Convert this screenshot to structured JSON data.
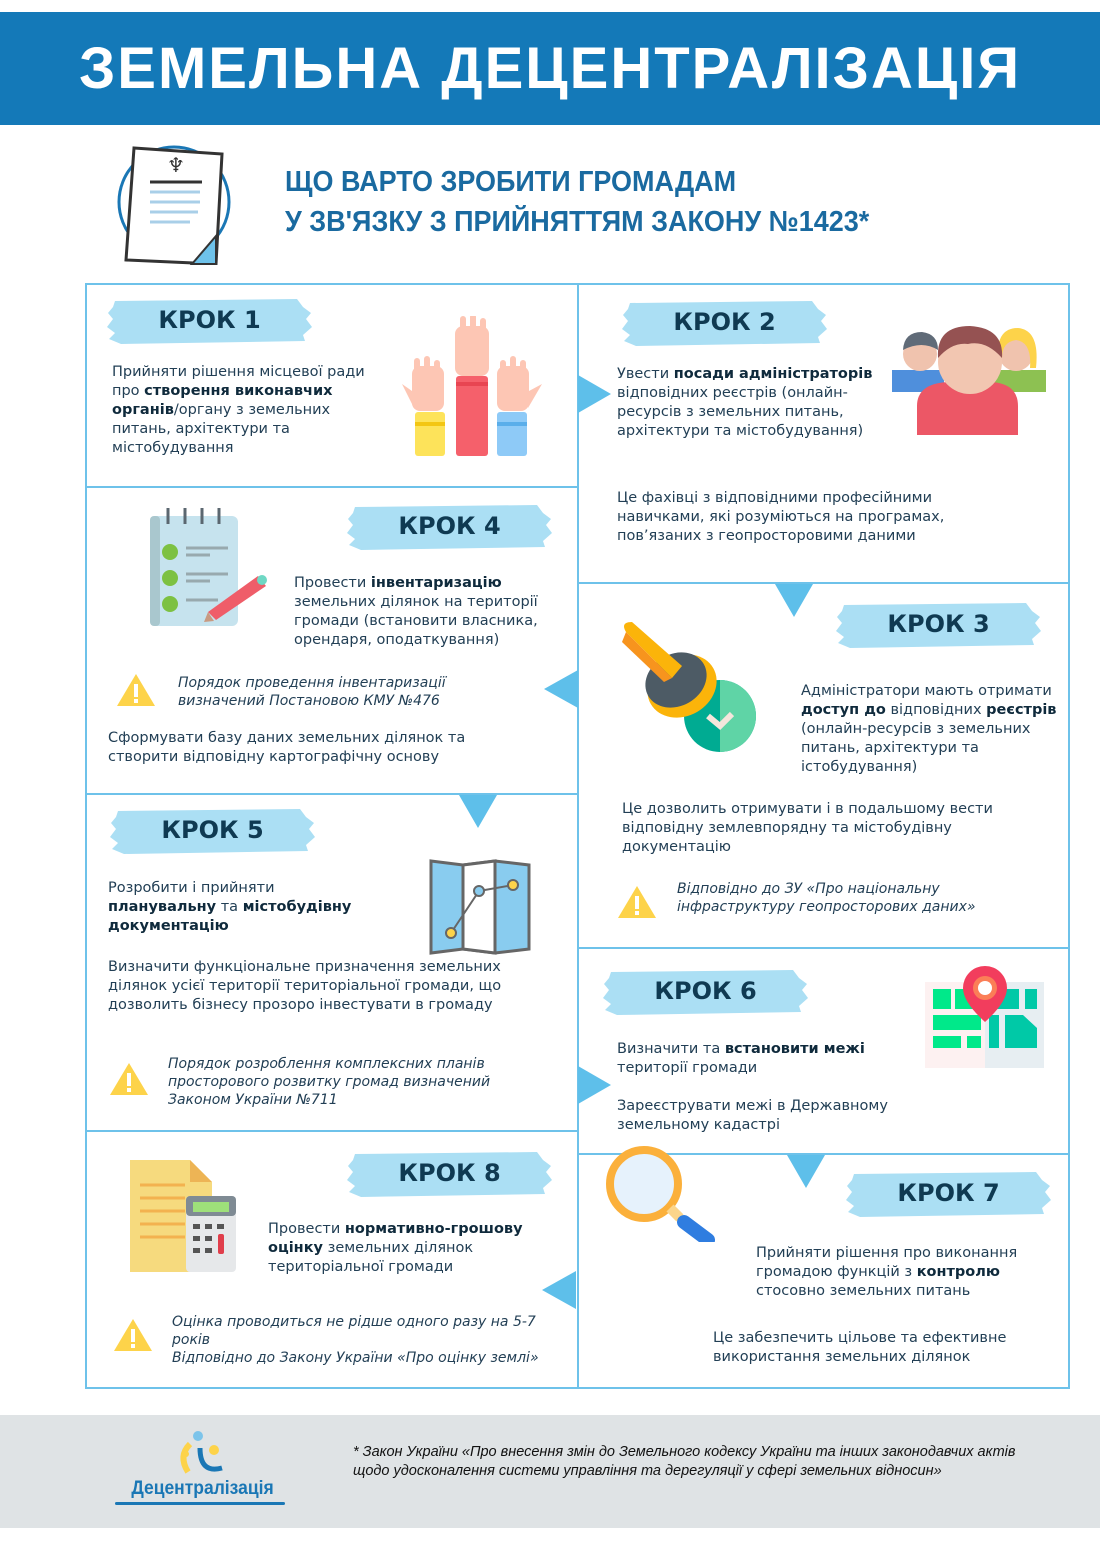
{
  "header": {
    "title": "ЗЕМЕЛЬНА ДЕЦЕНТРАЛІЗАЦІЯ",
    "subtitle_line1": "ЩО ВАРТО ЗРОБИТИ ГРОМАДАМ",
    "subtitle_line2": "У ЗВ'ЯЗКУ З ПРИЙНЯТТЯМ ЗАКОНУ №1423*"
  },
  "colors": {
    "header": "#1479b8",
    "grid": "#6ec2ea",
    "badge": "#abdff4",
    "arrow": "#5ebfea",
    "warning": "#fdd34a",
    "footer": "#dfe3e5"
  },
  "steps": {
    "s1": {
      "badge": "КРОК 1",
      "icon": "raised-hands-icon",
      "text": [
        {
          "t": "Прийняти рішення місцевої ради про "
        },
        {
          "t": "створення виконавчих органів",
          "b": true
        },
        {
          "t": "/органу з земельних питань, архітектури та містобудування"
        }
      ]
    },
    "s2": {
      "badge": "КРОК 2",
      "icon": "people-group-icon",
      "text": [
        {
          "t": "Увести "
        },
        {
          "t": "посади адміністраторів",
          "b": true
        },
        {
          "t": " відповідних реєстрів (онлайн-ресурсів з земельних питань, архітектури та містобудування)"
        }
      ],
      "text2": [
        {
          "t": "Це фахівці з відповідними професійними навичками, які розуміються на програмах, пов’язаних з геопросторовими даними"
        }
      ]
    },
    "s3": {
      "badge": "КРОК 3",
      "icon": "stamp-icon",
      "text": [
        {
          "t": "Адміністратори мають отримати "
        },
        {
          "t": "доступ до",
          "b": true
        },
        {
          "t": " відповідних "
        },
        {
          "t": "реєстрів",
          "b": true
        },
        {
          "t": " (онлайн-ресурсів з земельних питань, архітектури та істобудування)"
        }
      ],
      "text2": [
        {
          "t": "Це дозволить отримувати і в подальшому вести відповідну землевпорядну та містобудівну документацію"
        }
      ],
      "note": "Відповідно до ЗУ «Про національну інфраструктуру геопросторових даних»"
    },
    "s4": {
      "badge": "КРОК 4",
      "icon": "checklist-icon",
      "text": [
        {
          "t": "Провести "
        },
        {
          "t": "інвентаризацію",
          "b": true
        },
        {
          "t": " земельних ділянок на території громади (встановити власника, орендаря, оподаткування)"
        }
      ],
      "note": "Порядок проведення інвентаризації визначений Постановою КМУ №476",
      "text2": [
        {
          "t": "Сформувати базу даних земельних ділянок та створити відповідну картографічну основу"
        }
      ]
    },
    "s5": {
      "badge": "КРОК 5",
      "icon": "folded-map-icon",
      "text": [
        {
          "t": "Розробити і прийняти "
        },
        {
          "t": "планувальну",
          "b": true
        },
        {
          "t": " та "
        },
        {
          "t": "містобудівну документацію",
          "b": true
        }
      ],
      "text2": [
        {
          "t": "Визначити функціональне призначення земельних ділянок усієї території територіальної громади, що дозволить бізнесу прозоро інвестувати в громаду"
        }
      ],
      "note": "Порядок розроблення комплексних планів просторового розвитку громад визначений Законом України №711"
    },
    "s6": {
      "badge": "КРОК 6",
      "icon": "map-pin-icon",
      "text": [
        {
          "t": "Визначити та "
        },
        {
          "t": "встановити межі",
          "b": true
        },
        {
          "t": " території громади"
        }
      ],
      "text2": [
        {
          "t": "Зареєструвати межі в Державному земельному кадастрі"
        }
      ]
    },
    "s7": {
      "badge": "КРОК 7",
      "icon": "magnifier-icon",
      "text": [
        {
          "t": "Прийняти рішення про виконання громадою функцій з "
        },
        {
          "t": "контролю",
          "b": true
        },
        {
          "t": " стосовно земельних питань"
        }
      ],
      "text2": [
        {
          "t": "Це забезпечить цільове та ефективне використання земельних ділянок"
        }
      ]
    },
    "s8": {
      "badge": "КРОК 8",
      "icon": "calculator-document-icon",
      "text": [
        {
          "t": "Провести "
        },
        {
          "t": "нормативно-грошову оцінку",
          "b": true
        },
        {
          "t": " земельних ділянок територіальної громади"
        }
      ],
      "note": "Оцінка проводиться не рідше одного разу на 5-7 років\nВідповідно до Закону України «Про оцінку землі»"
    }
  },
  "footer": {
    "logo_text": "Децентралізація",
    "footnote": "* Закон України «Про внесення змін до Земельного кодексу України та інших законодавчих актів щодо удосконалення системи управління та дерегуляції у сфері земельних відносин»"
  }
}
